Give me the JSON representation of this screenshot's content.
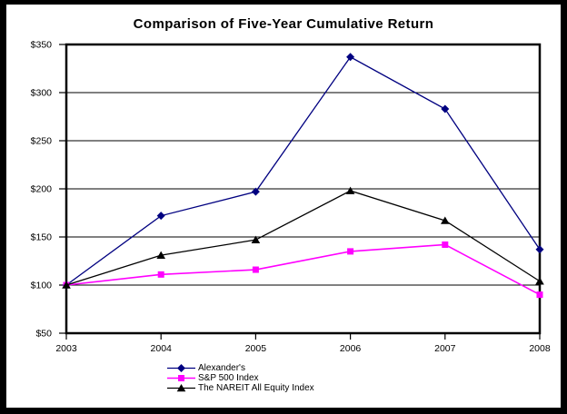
{
  "title": "Comparison of Five-Year Cumulative Return",
  "chart_data": {
    "type": "line",
    "title": "Comparison of Five-Year Cumulative Return",
    "categories": [
      "2003",
      "2004",
      "2005",
      "2006",
      "2007",
      "2008"
    ],
    "series": [
      {
        "name": "Alexander's",
        "color": "#000080",
        "marker": "diamond",
        "values": [
          100,
          172,
          197,
          337,
          283,
          137
        ]
      },
      {
        "name": "S&P 500 Index",
        "color": "#ff00ff",
        "marker": "square",
        "values": [
          100,
          111,
          116,
          135,
          142,
          90
        ]
      },
      {
        "name": "The NAREIT All Equity Index",
        "color": "#000000",
        "marker": "triangle",
        "values": [
          100,
          131,
          147,
          198,
          167,
          104
        ]
      }
    ],
    "ylim": [
      50,
      350
    ],
    "y_ticks": [
      50,
      100,
      150,
      200,
      250,
      300,
      350
    ],
    "y_tick_labels": [
      "$50",
      "$100",
      "$150",
      "$200",
      "$250",
      "$300",
      "$350"
    ],
    "grid": true,
    "legend_position": "bottom",
    "axis_color": "#000000",
    "plot_background": "#ffffff",
    "frame_color": "#000000"
  }
}
